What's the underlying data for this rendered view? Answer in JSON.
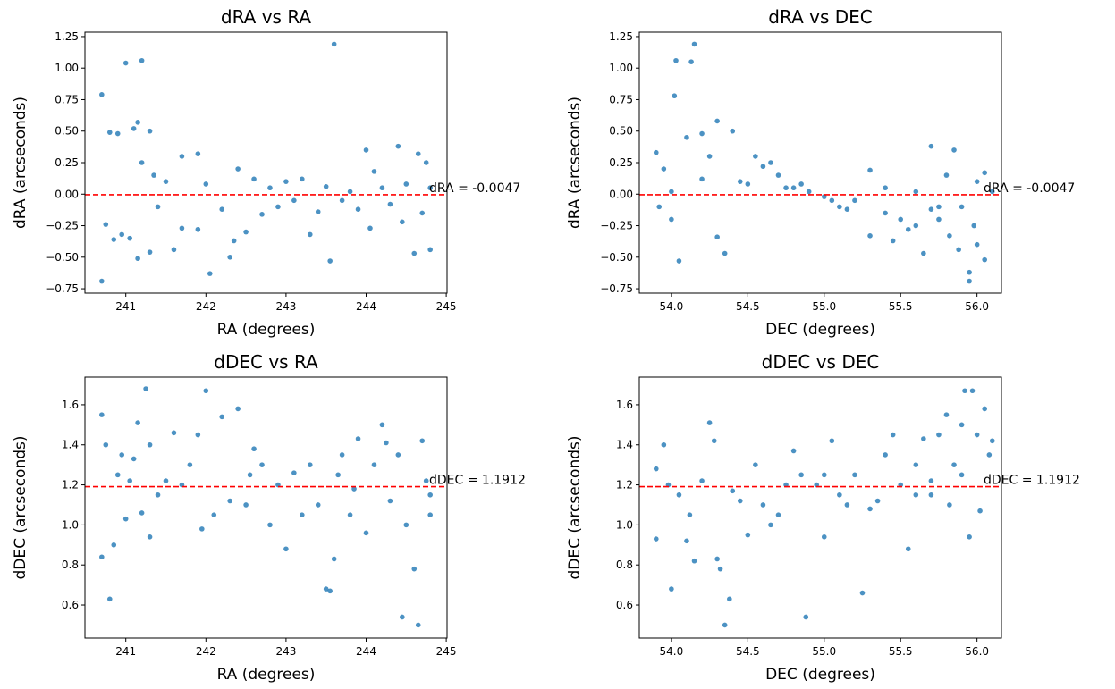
{
  "chart_data": [
    {
      "type": "scatter",
      "title": "dRA vs RA",
      "xlabel": "RA (degrees)",
      "ylabel": "dRA (arcseconds)",
      "color": "#1f77b4",
      "xlim": [
        240.49,
        245.01
      ],
      "ylim": [
        -0.785,
        1.285
      ],
      "xticks": [
        241,
        242,
        243,
        244,
        245
      ],
      "yticks": [
        {
          "value": -0.75,
          "label": "−0.75"
        },
        {
          "value": -0.5,
          "label": "−0.50"
        },
        {
          "value": -0.25,
          "label": "−0.25"
        },
        {
          "value": 0,
          "label": "0.00"
        },
        0.25,
        {
          "value": 0.5,
          "label": "0.50"
        },
        0.75,
        {
          "value": 1,
          "label": "1.00"
        },
        1.25
      ],
      "reference_line": {
        "value": -0.0047,
        "label": "dRA = -0.0047",
        "color": "#ff0000"
      },
      "x": [
        240.7,
        240.7,
        240.75,
        240.8,
        240.85,
        240.9,
        240.95,
        241.0,
        241.05,
        241.1,
        241.15,
        241.15,
        241.2,
        241.2,
        241.3,
        241.3,
        241.35,
        241.4,
        241.5,
        241.6,
        241.7,
        241.7,
        241.9,
        241.9,
        242.0,
        242.05,
        242.2,
        242.3,
        242.35,
        242.4,
        242.5,
        242.6,
        242.7,
        242.8,
        242.9,
        243.0,
        243.1,
        243.2,
        243.3,
        243.4,
        243.5,
        243.55,
        243.6,
        243.7,
        243.8,
        243.9,
        244.0,
        244.05,
        244.1,
        244.2,
        244.3,
        244.4,
        244.45,
        244.5,
        244.6,
        244.65,
        244.7,
        244.75,
        244.8,
        244.8
      ],
      "values": [
        0.79,
        -0.69,
        -0.24,
        0.49,
        -0.36,
        0.48,
        -0.32,
        1.04,
        -0.35,
        0.52,
        0.57,
        -0.51,
        1.06,
        0.25,
        0.5,
        -0.46,
        0.15,
        -0.1,
        0.1,
        -0.44,
        0.3,
        -0.27,
        0.32,
        -0.28,
        0.08,
        -0.63,
        -0.12,
        -0.5,
        -0.37,
        0.2,
        -0.3,
        0.12,
        -0.16,
        0.05,
        -0.1,
        0.1,
        -0.05,
        0.12,
        -0.32,
        -0.14,
        0.06,
        -0.53,
        1.19,
        -0.05,
        0.02,
        -0.12,
        0.35,
        -0.27,
        0.18,
        0.05,
        -0.08,
        0.38,
        -0.22,
        0.08,
        -0.47,
        0.32,
        -0.15,
        0.25,
        -0.44,
        0.05
      ]
    },
    {
      "type": "scatter",
      "title": "dRA vs DEC",
      "xlabel": "DEC (degrees)",
      "ylabel": "dRA (arcseconds)",
      "color": "#1f77b4",
      "xlim": [
        53.79,
        56.16
      ],
      "ylim": [
        -0.785,
        1.285
      ],
      "xticks": [
        {
          "value": 54,
          "label": "54.0"
        },
        54.5,
        {
          "value": 55,
          "label": "55.0"
        },
        55.5,
        {
          "value": 56,
          "label": "56.0"
        }
      ],
      "yticks": [
        {
          "value": -0.75,
          "label": "−0.75"
        },
        {
          "value": -0.5,
          "label": "−0.50"
        },
        {
          "value": -0.25,
          "label": "−0.25"
        },
        {
          "value": 0,
          "label": "0.00"
        },
        0.25,
        {
          "value": 0.5,
          "label": "0.50"
        },
        0.75,
        {
          "value": 1,
          "label": "1.00"
        },
        1.25
      ],
      "reference_line": {
        "value": -0.0047,
        "label": "dRA = -0.0047",
        "color": "#ff0000"
      },
      "x": [
        53.9,
        53.95,
        54.0,
        54.0,
        54.02,
        54.03,
        54.05,
        54.1,
        54.13,
        54.15,
        54.2,
        54.25,
        54.3,
        54.3,
        54.35,
        54.4,
        54.45,
        54.5,
        54.55,
        54.6,
        54.7,
        54.75,
        54.8,
        54.9,
        55.0,
        55.05,
        55.1,
        55.2,
        55.3,
        55.3,
        55.4,
        55.45,
        55.5,
        55.55,
        55.6,
        55.65,
        55.7,
        55.75,
        55.8,
        55.82,
        55.85,
        55.88,
        55.9,
        55.95,
        55.95,
        56.0,
        56.0,
        56.05,
        56.05,
        56.1,
        55.75,
        55.6,
        55.4,
        55.15,
        54.85,
        54.65,
        54.2,
        53.92,
        55.98,
        55.7
      ],
      "values": [
        0.33,
        0.2,
        0.02,
        -0.2,
        0.78,
        1.06,
        -0.53,
        0.45,
        1.05,
        1.19,
        0.48,
        0.3,
        0.58,
        -0.34,
        -0.47,
        0.5,
        0.1,
        0.08,
        0.3,
        0.22,
        0.15,
        0.05,
        0.05,
        0.02,
        -0.02,
        -0.05,
        -0.1,
        -0.05,
        0.19,
        -0.33,
        -0.15,
        -0.37,
        -0.2,
        -0.28,
        0.02,
        -0.47,
        0.38,
        -0.2,
        0.15,
        -0.33,
        0.35,
        -0.44,
        -0.1,
        -0.62,
        -0.69,
        0.1,
        -0.4,
        -0.52,
        0.17,
        0.02,
        -0.1,
        -0.25,
        0.05,
        -0.12,
        0.08,
        0.25,
        0.12,
        -0.1,
        -0.25,
        -0.12
      ]
    },
    {
      "type": "scatter",
      "title": "dDEC vs RA",
      "xlabel": "RA (degrees)",
      "ylabel": "dDEC (arcseconds)",
      "color": "#1f77b4",
      "xlim": [
        240.49,
        245.01
      ],
      "ylim": [
        0.435,
        1.738
      ],
      "xticks": [
        241,
        242,
        243,
        244,
        245
      ],
      "yticks": [
        0.6,
        0.8,
        {
          "value": 1,
          "label": "1.0"
        },
        1.2,
        1.4,
        1.6
      ],
      "reference_line": {
        "value": 1.1912,
        "label": "dDEC = 1.1912",
        "color": "#ff0000"
      },
      "x": [
        240.7,
        240.7,
        240.75,
        240.8,
        240.85,
        240.9,
        240.95,
        241.0,
        241.1,
        241.15,
        241.2,
        241.25,
        241.3,
        241.3,
        241.4,
        241.5,
        241.6,
        241.7,
        241.8,
        241.9,
        241.95,
        242.0,
        242.1,
        242.2,
        242.3,
        242.4,
        242.5,
        242.6,
        242.7,
        242.8,
        242.9,
        243.0,
        243.1,
        243.2,
        243.3,
        243.4,
        243.5,
        243.55,
        243.6,
        243.65,
        243.7,
        243.8,
        243.9,
        244.0,
        244.1,
        244.2,
        244.3,
        244.4,
        244.45,
        244.5,
        244.6,
        244.65,
        244.7,
        244.75,
        244.8,
        244.8,
        242.55,
        243.85,
        241.05,
        244.25
      ],
      "values": [
        1.55,
        0.84,
        1.4,
        0.63,
        0.9,
        1.25,
        1.35,
        1.03,
        1.33,
        1.51,
        1.06,
        1.68,
        1.4,
        0.94,
        1.15,
        1.22,
        1.46,
        1.2,
        1.3,
        1.45,
        0.98,
        1.67,
        1.05,
        1.54,
        1.12,
        1.58,
        1.1,
        1.38,
        1.3,
        1.0,
        1.2,
        0.88,
        1.26,
        1.05,
        1.3,
        1.1,
        0.68,
        0.67,
        0.83,
        1.25,
        1.35,
        1.05,
        1.43,
        0.96,
        1.3,
        1.5,
        1.12,
        1.35,
        0.54,
        1.0,
        0.78,
        0.5,
        1.42,
        1.22,
        1.15,
        1.05,
        1.25,
        1.18,
        1.22,
        1.41
      ]
    },
    {
      "type": "scatter",
      "title": "dDEC vs DEC",
      "xlabel": "DEC (degrees)",
      "ylabel": "dDEC (arcseconds)",
      "color": "#1f77b4",
      "xlim": [
        53.79,
        56.16
      ],
      "ylim": [
        0.435,
        1.738
      ],
      "xticks": [
        {
          "value": 54,
          "label": "54.0"
        },
        54.5,
        {
          "value": 55,
          "label": "55.0"
        },
        55.5,
        {
          "value": 56,
          "label": "56.0"
        }
      ],
      "yticks": [
        0.6,
        0.8,
        {
          "value": 1,
          "label": "1.0"
        },
        1.2,
        1.4,
        1.6
      ],
      "reference_line": {
        "value": 1.1912,
        "label": "dDEC = 1.1912",
        "color": "#ff0000"
      },
      "x": [
        53.9,
        53.9,
        53.95,
        54.0,
        54.05,
        54.1,
        54.15,
        54.2,
        54.25,
        54.28,
        54.3,
        54.32,
        54.35,
        54.38,
        54.4,
        54.5,
        54.55,
        54.6,
        54.7,
        54.8,
        54.85,
        54.88,
        54.95,
        55.0,
        55.05,
        55.1,
        55.2,
        55.25,
        55.3,
        55.4,
        55.45,
        55.5,
        55.55,
        55.6,
        55.65,
        55.7,
        55.75,
        55.8,
        55.85,
        55.9,
        55.92,
        55.95,
        55.97,
        56.0,
        56.02,
        56.05,
        56.08,
        56.1,
        55.82,
        55.6,
        55.35,
        55.15,
        54.75,
        54.45,
        54.12,
        53.98,
        55.9,
        55.7,
        55.0,
        54.65
      ],
      "values": [
        1.28,
        0.93,
        1.4,
        0.68,
        1.15,
        0.92,
        0.82,
        1.22,
        1.51,
        1.42,
        0.83,
        0.78,
        0.5,
        0.63,
        1.17,
        0.95,
        1.3,
        1.1,
        1.05,
        1.37,
        1.25,
        0.54,
        1.2,
        0.94,
        1.42,
        1.15,
        1.25,
        0.66,
        1.08,
        1.35,
        1.45,
        1.2,
        0.88,
        1.3,
        1.43,
        1.15,
        1.45,
        1.55,
        1.3,
        1.25,
        1.67,
        0.94,
        1.67,
        1.45,
        1.07,
        1.58,
        1.35,
        1.42,
        1.1,
        1.15,
        1.12,
        1.1,
        1.2,
        1.12,
        1.05,
        1.2,
        1.5,
        1.22,
        1.25,
        1.0
      ]
    }
  ]
}
